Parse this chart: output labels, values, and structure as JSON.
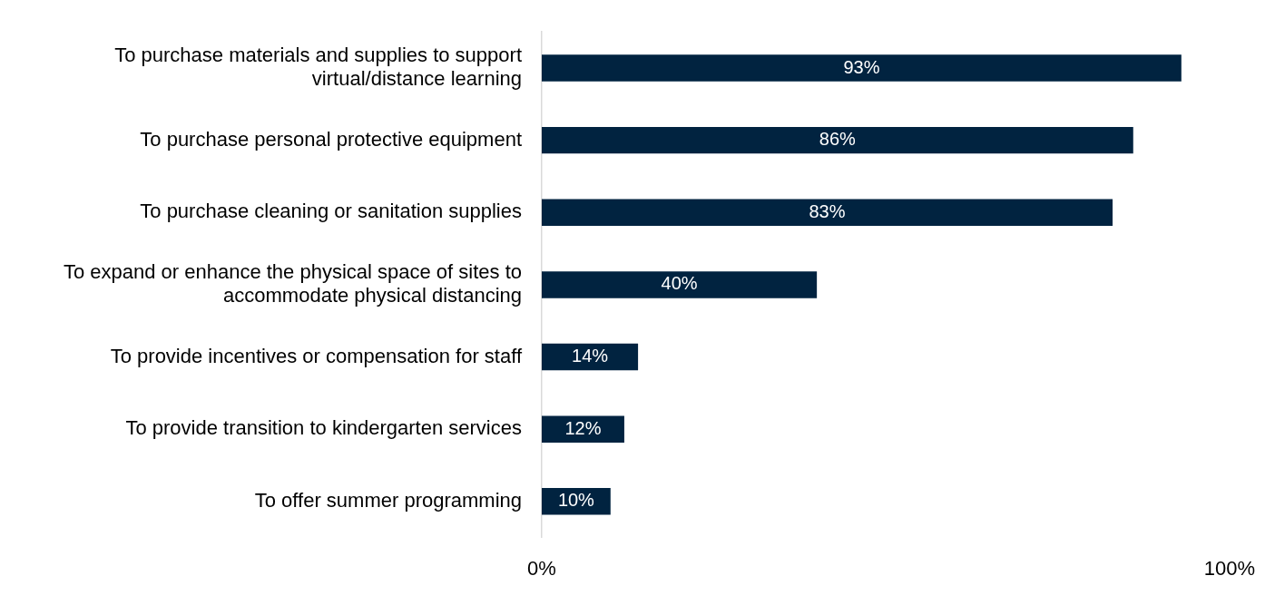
{
  "chart_data": {
    "type": "bar",
    "orientation": "horizontal",
    "categories": [
      "To purchase materials and supplies to support virtual/distance learning",
      "To purchase personal protective equipment",
      "To purchase cleaning or sanitation supplies",
      "To expand or enhance the physical space of sites to accommodate physical distancing",
      "To provide incentives or compensation for staff",
      "To provide transition to kindergarten services",
      "To offer summer programming"
    ],
    "values": [
      93,
      86,
      83,
      40,
      14,
      12,
      10
    ],
    "value_labels": [
      "93%",
      "86%",
      "83%",
      "40%",
      "14%",
      "12%",
      "10%"
    ],
    "color": "#012340",
    "xlim": [
      0,
      100
    ],
    "xticks": [
      {
        "value": 0,
        "label": "0%"
      },
      {
        "value": 100,
        "label": "100%"
      }
    ],
    "grid": false,
    "legend": false
  }
}
